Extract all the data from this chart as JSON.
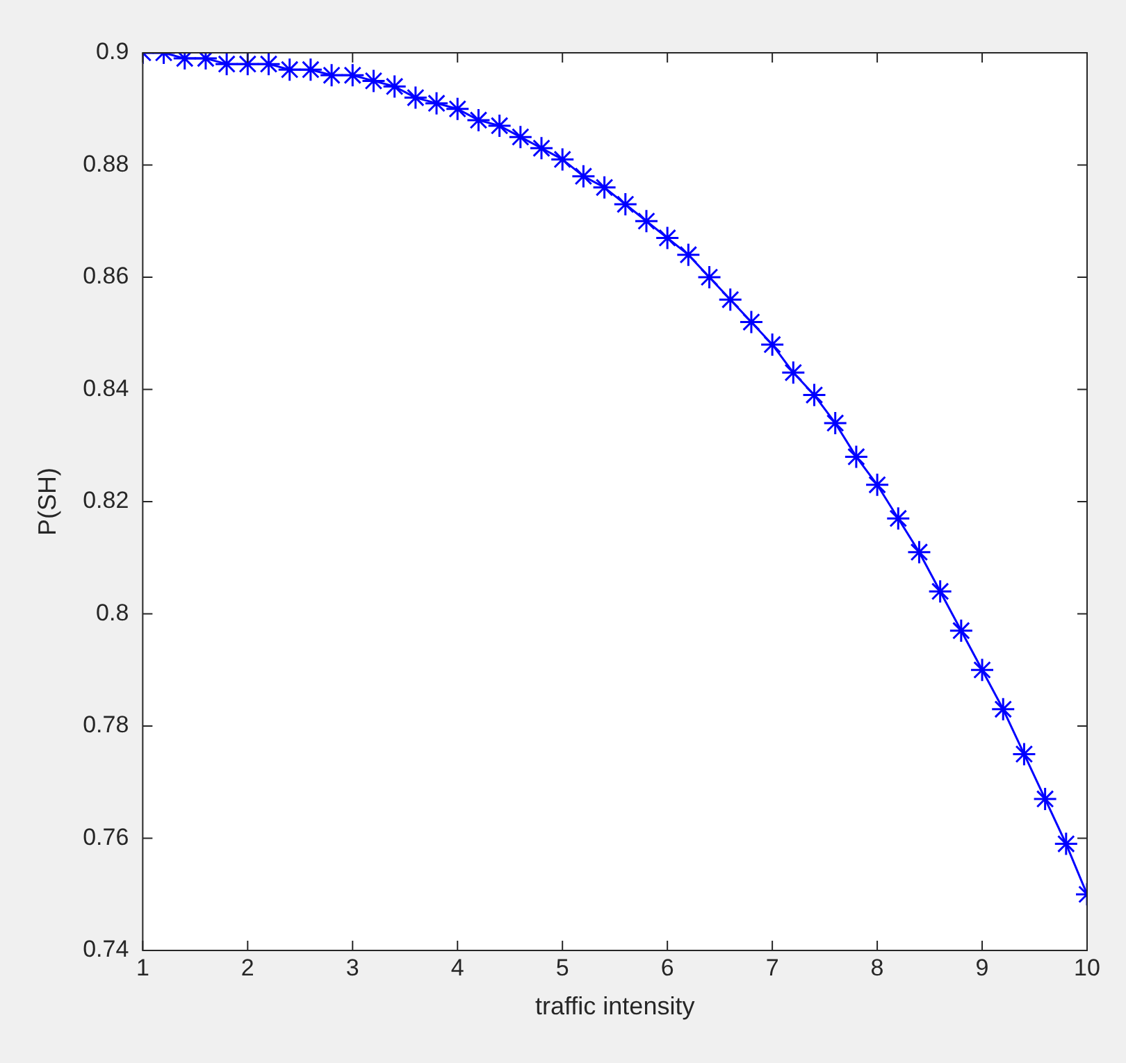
{
  "chart_data": {
    "type": "line",
    "xlabel": "traffic intensity",
    "ylabel": "P(SH)",
    "x": [
      1,
      1.2,
      1.4,
      1.6,
      1.8,
      2,
      2.2,
      2.4,
      2.6,
      2.8,
      3,
      3.2,
      3.4,
      3.6,
      3.8,
      4,
      4.2,
      4.4,
      4.6,
      4.8,
      5,
      5.2,
      5.4,
      5.6,
      5.8,
      6,
      6.2,
      6.4,
      6.6,
      6.8,
      7,
      7.2,
      7.4,
      7.6,
      7.8,
      8,
      8.2,
      8.4,
      8.6,
      8.8,
      9,
      9.2,
      9.4,
      9.6,
      9.8,
      10
    ],
    "series": [
      {
        "color": "#0000ff",
        "values": [
          0.9,
          0.9,
          0.899,
          0.899,
          0.898,
          0.898,
          0.898,
          0.897,
          0.897,
          0.896,
          0.896,
          0.895,
          0.894,
          0.892,
          0.891,
          0.89,
          0.888,
          0.887,
          0.885,
          0.883,
          0.881,
          0.878,
          0.876,
          0.873,
          0.87,
          0.867,
          0.864,
          0.86,
          0.856,
          0.852,
          0.848,
          0.843,
          0.839,
          0.834,
          0.828,
          0.823,
          0.817,
          0.811,
          0.804,
          0.797,
          0.79,
          0.783,
          0.775,
          0.767,
          0.759,
          0.75
        ]
      }
    ],
    "xlim": [
      1,
      10
    ],
    "xticks": [
      1,
      2,
      3,
      4,
      5,
      6,
      7,
      8,
      9,
      10
    ],
    "ylim": [
      0.74,
      0.9
    ],
    "yticks": [
      0.74,
      0.76,
      0.78,
      0.8,
      0.82,
      0.84,
      0.86,
      0.88,
      0.9
    ],
    "grid": false,
    "legend": false,
    "marker": "cross",
    "line_style": "solid"
  }
}
